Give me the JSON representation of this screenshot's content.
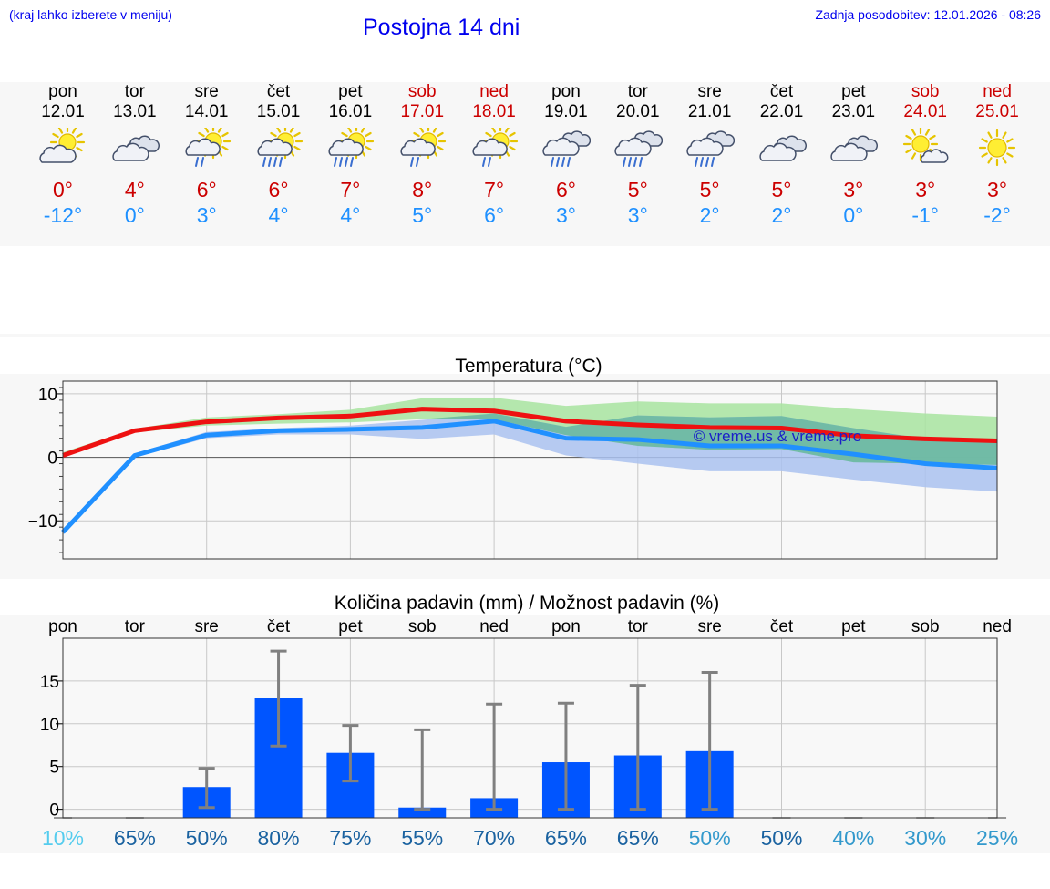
{
  "header": {
    "hint": "(kraj lahko izberete v meniju)",
    "title": "Postojna 14 dni",
    "last_update": "Zadnja posodobitev: 12.01.2026 - 08:26"
  },
  "days": [
    {
      "weekday": "pon",
      "date": "12.01",
      "icon": "partly-cloudy-icon",
      "tmax": "0°",
      "tmin": "-12°",
      "weekend": false
    },
    {
      "weekday": "tor",
      "date": "13.01",
      "icon": "cloudy-icon",
      "tmax": "4°",
      "tmin": "0°",
      "weekend": false
    },
    {
      "weekday": "sre",
      "date": "14.01",
      "icon": "sun-light-rain-icon",
      "tmax": "6°",
      "tmin": "3°",
      "weekend": false
    },
    {
      "weekday": "čet",
      "date": "15.01",
      "icon": "sun-rain-icon",
      "tmax": "6°",
      "tmin": "4°",
      "weekend": false
    },
    {
      "weekday": "pet",
      "date": "16.01",
      "icon": "sun-rain-icon",
      "tmax": "7°",
      "tmin": "4°",
      "weekend": false
    },
    {
      "weekday": "sob",
      "date": "17.01",
      "icon": "sun-light-rain-icon",
      "tmax": "8°",
      "tmin": "5°",
      "weekend": true
    },
    {
      "weekday": "ned",
      "date": "18.01",
      "icon": "sun-light-rain-icon",
      "tmax": "7°",
      "tmin": "6°",
      "weekend": true
    },
    {
      "weekday": "pon",
      "date": "19.01",
      "icon": "cloud-rain-icon",
      "tmax": "6°",
      "tmin": "3°",
      "weekend": false
    },
    {
      "weekday": "tor",
      "date": "20.01",
      "icon": "cloud-rain-icon",
      "tmax": "5°",
      "tmin": "3°",
      "weekend": false
    },
    {
      "weekday": "sre",
      "date": "21.01",
      "icon": "cloud-rain-icon",
      "tmax": "5°",
      "tmin": "2°",
      "weekend": false
    },
    {
      "weekday": "čet",
      "date": "22.01",
      "icon": "cloudy-icon",
      "tmax": "5°",
      "tmin": "2°",
      "weekend": false
    },
    {
      "weekday": "pet",
      "date": "23.01",
      "icon": "cloudy-icon",
      "tmax": "3°",
      "tmin": "0°",
      "weekend": false
    },
    {
      "weekday": "sob",
      "date": "24.01",
      "icon": "sun-small-cloud-icon",
      "tmax": "3°",
      "tmin": "-1°",
      "weekend": true
    },
    {
      "weekday": "ned",
      "date": "25.01",
      "icon": "sun-icon",
      "tmax": "3°",
      "tmin": "-2°",
      "weekend": true
    }
  ],
  "colors": {
    "tmax_line": "#ee1111",
    "tmin_line": "#2090ff",
    "max_band": "#a8e4a0",
    "min_band": "#aac2f0",
    "overlap_band": "#66b89a",
    "bar": "#0055ff",
    "error_bar": "#808080",
    "pct_colors": [
      "#55ccee",
      "#1a62a0",
      "#1a62a0",
      "#1a62a0",
      "#1a62a0",
      "#1a62a0",
      "#1a62a0",
      "#1a62a0",
      "#1a62a0",
      "#3399cc",
      "#1a62a0",
      "#3399cc",
      "#3399cc",
      "#3399cc"
    ]
  },
  "chart_data": [
    {
      "type": "line",
      "title": "Temperatura (°C)",
      "watermark": "© vreme.us & vreme.pro",
      "ylim": [
        -16,
        12
      ],
      "yticks": [
        10,
        0,
        -10
      ],
      "ytick_labels": [
        "10",
        "0",
        "−10"
      ],
      "x": [
        0,
        1,
        2,
        3,
        4,
        5,
        6,
        7,
        8,
        9,
        10,
        11,
        12,
        13
      ],
      "series": [
        {
          "name": "Tmax",
          "values": [
            0.3,
            4.2,
            5.6,
            6.2,
            6.5,
            7.6,
            7.3,
            5.7,
            5.1,
            4.7,
            4.6,
            3.4,
            2.9,
            2.6
          ],
          "band_low": [
            0.0,
            3.9,
            5.0,
            5.3,
            5.5,
            6.0,
            6.0,
            3.5,
            1.8,
            1.2,
            1.3,
            -0.8,
            -1.0,
            -1.2
          ],
          "band_high": [
            0.8,
            4.5,
            6.3,
            6.8,
            7.5,
            9.3,
            9.4,
            8.1,
            8.8,
            8.5,
            8.5,
            7.6,
            6.9,
            6.4
          ]
        },
        {
          "name": "Tmin",
          "values": [
            -11.8,
            0.3,
            3.5,
            4.2,
            4.4,
            4.7,
            5.7,
            3.0,
            2.8,
            1.8,
            1.8,
            0.5,
            -1.0,
            -1.7
          ],
          "band_low": [
            -12.2,
            0.0,
            3.0,
            3.6,
            3.6,
            2.9,
            3.6,
            0.3,
            -1.0,
            -2.2,
            -2.2,
            -3.5,
            -4.7,
            -5.4
          ],
          "band_high": [
            -11.4,
            0.6,
            4.0,
            4.6,
            5.0,
            5.9,
            6.9,
            4.8,
            6.6,
            6.3,
            6.5,
            4.6,
            2.9,
            2.6
          ]
        }
      ]
    },
    {
      "type": "bar",
      "title": "Količina padavin (mm) / Možnost padavin (%)",
      "categories": [
        "pon",
        "tor",
        "sre",
        "čet",
        "pet",
        "sob",
        "ned",
        "pon",
        "tor",
        "sre",
        "čet",
        "pet",
        "sob",
        "ned"
      ],
      "ylim": [
        -1,
        20
      ],
      "yticks": [
        0,
        5,
        10,
        15
      ],
      "values": [
        0,
        0,
        2.6,
        13.0,
        6.6,
        0.2,
        1.3,
        5.5,
        6.3,
        6.8,
        0,
        0,
        0,
        0
      ],
      "error_low": [
        0,
        0,
        0.2,
        7.4,
        3.3,
        0,
        0,
        0,
        0,
        0,
        0,
        0,
        0,
        0
      ],
      "error_high": [
        0,
        0,
        4.8,
        18.5,
        9.8,
        9.3,
        12.3,
        12.4,
        14.5,
        16.0,
        0,
        0,
        0,
        0
      ],
      "probabilities": [
        "10%",
        "65%",
        "50%",
        "80%",
        "75%",
        "55%",
        "70%",
        "65%",
        "65%",
        "50%",
        "50%",
        "40%",
        "30%",
        "25%"
      ]
    }
  ]
}
